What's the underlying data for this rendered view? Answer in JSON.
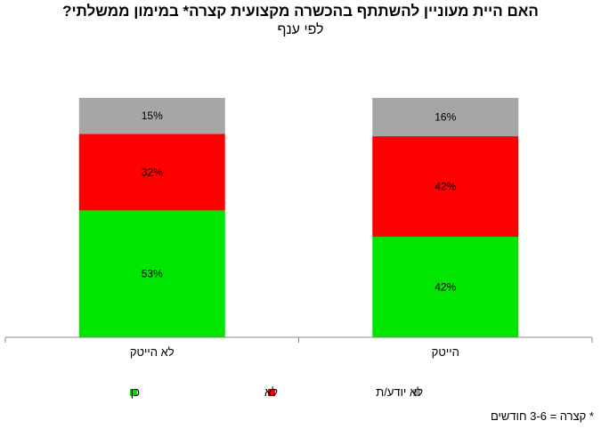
{
  "chart_data": {
    "type": "bar",
    "stacked": true,
    "title": "האם היית מעוניין להשתתף בהכשרה מקצועית קצרה*  במימון ממשלתי?",
    "subtitle": "לפי ענף",
    "categories": [
      "לא הייטק",
      "הייטק"
    ],
    "series": [
      {
        "name": "כן",
        "color": "#00E600",
        "values": [
          53,
          42
        ]
      },
      {
        "name": "לא",
        "color": "#FF0000",
        "values": [
          32,
          42
        ]
      },
      {
        "name": "לא יודע/ת",
        "color": "#A6A6A6",
        "values": [
          15,
          16
        ]
      }
    ],
    "value_suffix": "%",
    "ylim": [
      0,
      100
    ],
    "grid": false,
    "legend_position": "bottom",
    "footnote": "* קצרה = 3-6 חודשים"
  }
}
